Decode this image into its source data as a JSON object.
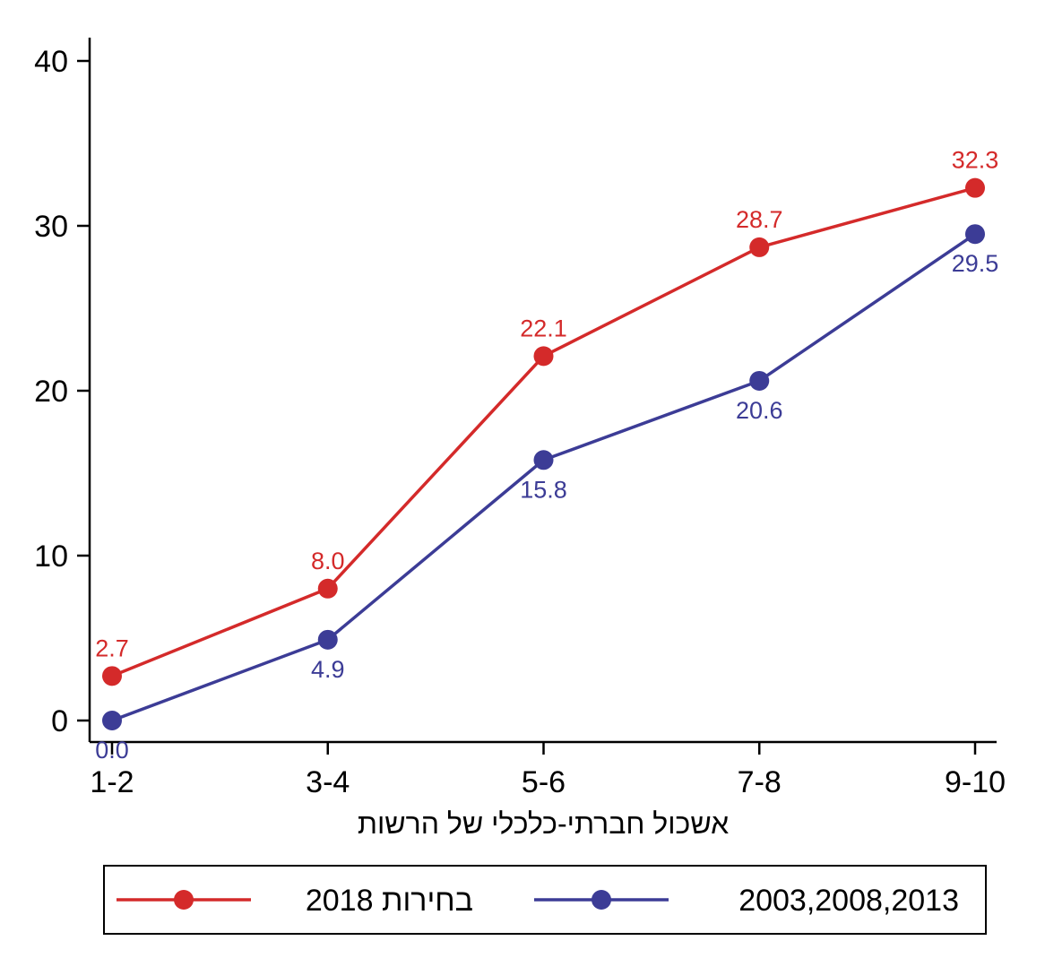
{
  "chart_data": {
    "type": "line",
    "categories": [
      "1-2",
      "3-4",
      "5-6",
      "7-8",
      "9-10"
    ],
    "xlabel": "אשכול חברתי-כלכלי של הרשות",
    "ylabel": "",
    "ylim": [
      0,
      40
    ],
    "yticks": [
      "0",
      "10",
      "20",
      "30",
      "40"
    ],
    "grid": false,
    "legend_position": "bottom",
    "series": [
      {
        "name": "2018 בחירות",
        "color": "#d42a2a",
        "values": [
          2.7,
          8.0,
          22.1,
          28.7,
          32.3
        ],
        "labels": [
          "2.7",
          "8.0",
          "22.1",
          "28.7",
          "32.3"
        ],
        "label_position": "above"
      },
      {
        "name": "2003,2008,2013",
        "color": "#3c3c96",
        "values": [
          0.0,
          4.9,
          15.8,
          20.6,
          29.5
        ],
        "labels": [
          "0.0",
          "4.9",
          "15.8",
          "20.6",
          "29.5"
        ],
        "label_position": "below"
      }
    ]
  }
}
